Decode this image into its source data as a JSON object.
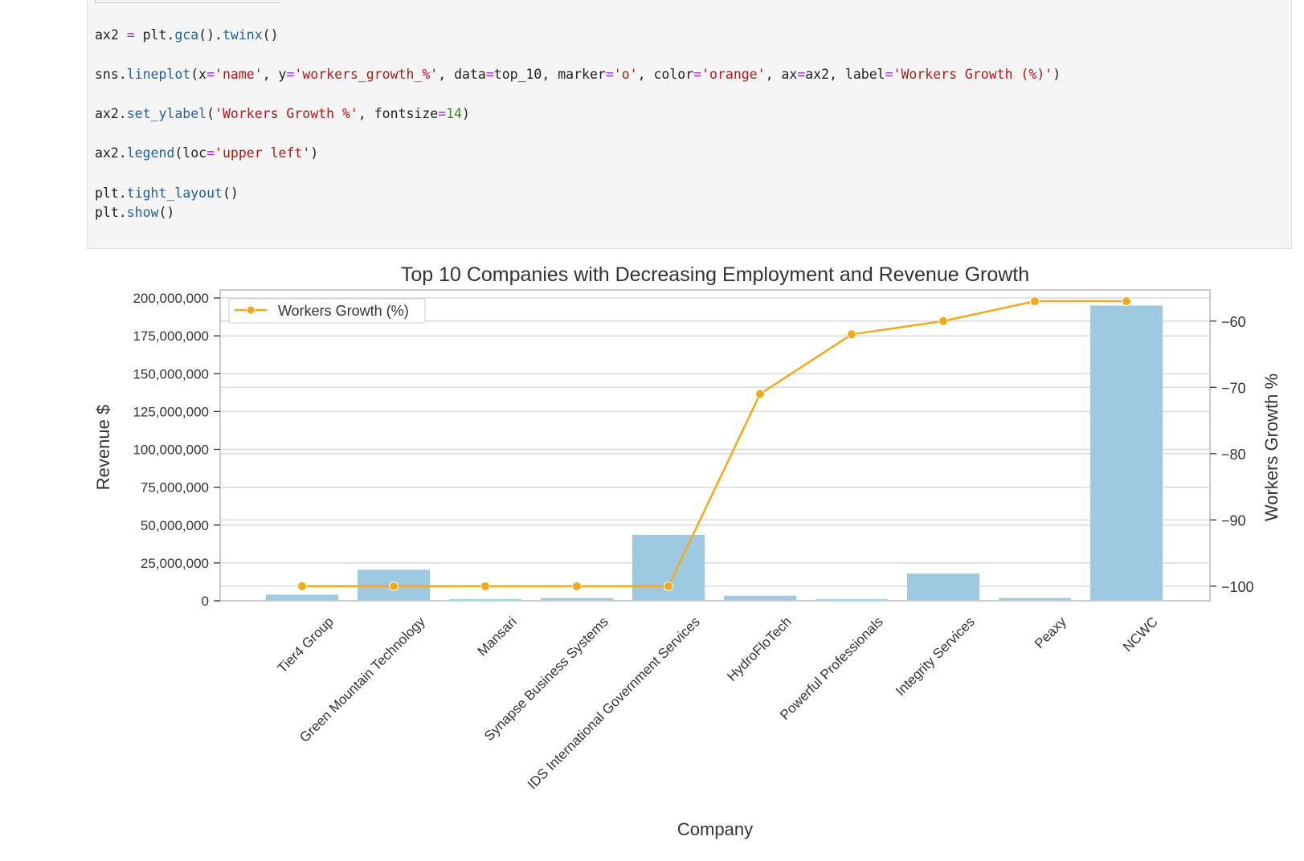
{
  "code_lines": [
    [
      {
        "t": "ax2 "
      },
      {
        "t": "=",
        "c": "op"
      },
      {
        "t": " plt."
      },
      {
        "t": "gca",
        "c": "fn"
      },
      {
        "t": "()."
      },
      {
        "t": "twinx",
        "c": "fn"
      },
      {
        "t": "()"
      }
    ],
    [
      {
        "t": "sns."
      },
      {
        "t": "lineplot",
        "c": "fn"
      },
      {
        "t": "(x"
      },
      {
        "t": "=",
        "c": "op"
      },
      {
        "t": "'name'",
        "c": "str"
      },
      {
        "t": ", y"
      },
      {
        "t": "=",
        "c": "op"
      },
      {
        "t": "'workers_growth_%'",
        "c": "str"
      },
      {
        "t": ", data"
      },
      {
        "t": "=",
        "c": "op"
      },
      {
        "t": "top_10, marker"
      },
      {
        "t": "=",
        "c": "op"
      },
      {
        "t": "'o'",
        "c": "str"
      },
      {
        "t": ", color"
      },
      {
        "t": "=",
        "c": "op"
      },
      {
        "t": "'orange'",
        "c": "str"
      },
      {
        "t": ", ax"
      },
      {
        "t": "=",
        "c": "op"
      },
      {
        "t": "ax2, label"
      },
      {
        "t": "=",
        "c": "op"
      },
      {
        "t": "'Workers Growth (%)'",
        "c": "str"
      },
      {
        "t": ")"
      }
    ],
    [
      {
        "t": "ax2."
      },
      {
        "t": "set_ylabel",
        "c": "fn"
      },
      {
        "t": "("
      },
      {
        "t": "'Workers Growth %'",
        "c": "str"
      },
      {
        "t": ", fontsize"
      },
      {
        "t": "=",
        "c": "op"
      },
      {
        "t": "14",
        "c": "num"
      },
      {
        "t": ")"
      }
    ],
    [
      {
        "t": "ax2."
      },
      {
        "t": "legend",
        "c": "fn"
      },
      {
        "t": "(loc"
      },
      {
        "t": "=",
        "c": "op"
      },
      {
        "t": "'upper left'",
        "c": "str"
      },
      {
        "t": ")"
      }
    ],
    [
      {
        "t": "plt."
      },
      {
        "t": "tight_layout",
        "c": "fn"
      },
      {
        "t": "()"
      }
    ],
    [
      {
        "t": "plt."
      },
      {
        "t": "show",
        "c": "fn"
      },
      {
        "t": "()"
      }
    ]
  ],
  "chart_data": {
    "type": "bar",
    "title": "Top 10 Companies with Decreasing Employment and Revenue Growth",
    "xlabel": "Company",
    "ylabel": "Revenue $",
    "y2label": "Workers Growth %",
    "categories": [
      "Tier4 Group",
      "Green Mountain Technology",
      "Mansari",
      "Synapse Business Systems",
      "IDS International Government Services",
      "HydroFloTech",
      "Powerful Professionals",
      "Integrity Services",
      "Peaxy",
      "NCWC"
    ],
    "series": [
      {
        "axis": "left",
        "type": "bar",
        "color": "#9ecae1",
        "values": [
          4000000,
          20500000,
          1000000,
          1800000,
          43500000,
          3300000,
          1000000,
          18000000,
          1800000,
          195000000
        ]
      },
      {
        "axis": "right",
        "type": "line",
        "name": "Workers Growth (%)",
        "color": "#f4a91c",
        "values": [
          -100,
          -100,
          -100,
          -100,
          -100,
          -71,
          -62,
          -60,
          -57,
          -57
        ]
      }
    ],
    "ylim": [
      0,
      200000000
    ],
    "y2lim": [
      -102.2,
      -55.3
    ],
    "yticks": [
      "0",
      "25,000,000",
      "50,000,000",
      "75,000,000",
      "100,000,000",
      "125,000,000",
      "150,000,000",
      "175,000,000",
      "200,000,000"
    ],
    "y2ticks": [
      "−100",
      "−90",
      "−80",
      "−70",
      "−60"
    ],
    "grid": true,
    "legend": "upper left"
  }
}
